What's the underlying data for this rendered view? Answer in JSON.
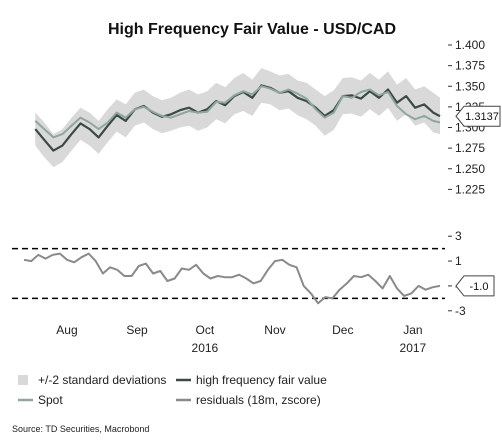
{
  "colors": {
    "band": "#d9d9d9",
    "fair_value": "#3c4a44",
    "spot": "#8fa79c",
    "residuals": "#8a8a8a",
    "threshold": "#000000"
  },
  "chart_data": {
    "title": "High Frequency Fair Value - USD/CAD",
    "type": "line",
    "x_ticks": [
      {
        "date": "2016-08-15",
        "label": "Aug",
        "year": ""
      },
      {
        "date": "2016-09-15",
        "label": "Sep",
        "year": ""
      },
      {
        "date": "2016-10-15",
        "label": "Oct",
        "year": "2016"
      },
      {
        "date": "2016-11-15",
        "label": "Nov",
        "year": ""
      },
      {
        "date": "2016-12-15",
        "label": "Dec",
        "year": ""
      },
      {
        "date": "2017-01-15",
        "label": "Jan",
        "year": "2017"
      }
    ],
    "upper_panel": {
      "ylim": [
        1.2,
        1.4
      ],
      "y_ticks": [
        "1.400",
        "1.375",
        "1.350",
        "1.325",
        "1.300",
        "1.275",
        "1.250",
        "1.225"
      ],
      "dates": [
        "2016-08-01",
        "2016-08-05",
        "2016-08-09",
        "2016-08-13",
        "2016-08-17",
        "2016-08-21",
        "2016-08-25",
        "2016-08-29",
        "2016-09-02",
        "2016-09-06",
        "2016-09-10",
        "2016-09-14",
        "2016-09-18",
        "2016-09-22",
        "2016-09-26",
        "2016-09-30",
        "2016-10-04",
        "2016-10-08",
        "2016-10-12",
        "2016-10-16",
        "2016-10-20",
        "2016-10-24",
        "2016-10-28",
        "2016-11-01",
        "2016-11-05",
        "2016-11-09",
        "2016-11-13",
        "2016-11-17",
        "2016-11-21",
        "2016-11-25",
        "2016-11-29",
        "2016-12-03",
        "2016-12-07",
        "2016-12-11",
        "2016-12-15",
        "2016-12-19",
        "2016-12-23",
        "2016-12-27",
        "2016-12-31",
        "2017-01-04",
        "2017-01-08",
        "2017-01-12",
        "2017-01-16",
        "2017-01-20",
        "2017-01-24",
        "2017-01-27"
      ],
      "series": [
        {
          "name": "high frequency fair value",
          "values": [
            1.298,
            1.285,
            1.272,
            1.278,
            1.292,
            1.305,
            1.298,
            1.288,
            1.302,
            1.315,
            1.308,
            1.322,
            1.326,
            1.318,
            1.313,
            1.316,
            1.321,
            1.324,
            1.318,
            1.322,
            1.332,
            1.327,
            1.338,
            1.343,
            1.336,
            1.351,
            1.348,
            1.342,
            1.344,
            1.336,
            1.332,
            1.324,
            1.314,
            1.321,
            1.338,
            1.339,
            1.335,
            1.344,
            1.336,
            1.346,
            1.33,
            1.338,
            1.324,
            1.328,
            1.318,
            1.3137
          ]
        },
        {
          "name": "Spot",
          "values": [
            1.308,
            1.298,
            1.288,
            1.292,
            1.302,
            1.312,
            1.306,
            1.298,
            1.306,
            1.318,
            1.312,
            1.322,
            1.325,
            1.319,
            1.314,
            1.312,
            1.316,
            1.32,
            1.318,
            1.319,
            1.331,
            1.33,
            1.339,
            1.344,
            1.34,
            1.35,
            1.347,
            1.342,
            1.346,
            1.341,
            1.335,
            1.322,
            1.312,
            1.318,
            1.338,
            1.336,
            1.343,
            1.346,
            1.339,
            1.343,
            1.326,
            1.316,
            1.31,
            1.314,
            1.308,
            1.306
          ]
        }
      ],
      "band": {
        "name": "+/-2 standard deviations",
        "upper": [
          1.318,
          1.306,
          1.292,
          1.298,
          1.312,
          1.324,
          1.318,
          1.308,
          1.322,
          1.334,
          1.328,
          1.342,
          1.346,
          1.338,
          1.333,
          1.336,
          1.342,
          1.346,
          1.34,
          1.344,
          1.354,
          1.349,
          1.36,
          1.366,
          1.358,
          1.372,
          1.368,
          1.363,
          1.365,
          1.357,
          1.354,
          1.346,
          1.338,
          1.345,
          1.36,
          1.361,
          1.357,
          1.366,
          1.358,
          1.368,
          1.352,
          1.36,
          1.346,
          1.35,
          1.342,
          1.336
        ],
        "lower": [
          1.278,
          1.264,
          1.252,
          1.258,
          1.272,
          1.285,
          1.278,
          1.268,
          1.282,
          1.295,
          1.288,
          1.302,
          1.306,
          1.298,
          1.293,
          1.296,
          1.3,
          1.302,
          1.296,
          1.3,
          1.31,
          1.305,
          1.316,
          1.32,
          1.314,
          1.33,
          1.328,
          1.321,
          1.323,
          1.315,
          1.31,
          1.302,
          1.29,
          1.297,
          1.316,
          1.317,
          1.313,
          1.322,
          1.314,
          1.324,
          1.308,
          1.316,
          1.302,
          1.306,
          1.294,
          1.292
        ]
      },
      "callout_label": "1.3137",
      "callout_value": 1.3137
    },
    "lower_panel": {
      "ylim": [
        -3.5,
        3.5
      ],
      "y_ticks": [
        {
          "value": 3,
          "label": "3"
        },
        {
          "value": 1,
          "label": "1"
        },
        {
          "value": -1,
          "label": "-1"
        },
        {
          "value": -3,
          "label": "-3"
        }
      ],
      "thresholds": [
        2,
        -2
      ],
      "series": [
        {
          "name": "residuals (18m, zscore)",
          "values": [
            1.1,
            1.0,
            1.5,
            1.2,
            1.5,
            1.6,
            1.1,
            0.9,
            1.3,
            1.6,
            1.0,
            0.0,
            0.5,
            0.3,
            -0.2,
            -0.2,
            0.6,
            0.8,
            0.0,
            0.2,
            -0.6,
            -0.4,
            0.4,
            0.3,
            0.7,
            0.0,
            -0.4,
            -0.2,
            -0.3,
            -0.3,
            -0.1,
            -0.4,
            -0.8,
            -0.6,
            0.3,
            1.0,
            1.1,
            0.7,
            0.5,
            -1.0,
            -1.6,
            -2.4,
            -1.9,
            -2.0,
            -1.3,
            -0.8,
            -0.2,
            -0.3,
            -0.1,
            -0.6,
            -1.2,
            -0.2,
            -1.2,
            -1.8,
            -1.6,
            -1.0,
            -1.3,
            -1.1,
            -1.0
          ]
        }
      ],
      "callout_label": "-1.0",
      "callout_value": -1.0
    },
    "legend": [
      {
        "label": "+/-2 standard deviations",
        "kind": "band"
      },
      {
        "label": "high frequency fair value",
        "kind": "fair"
      },
      {
        "label": "Spot",
        "kind": "spot"
      },
      {
        "label": "residuals (18m, zscore)",
        "kind": "resid"
      }
    ],
    "source": "Source: TD Securities, Macrobond"
  }
}
